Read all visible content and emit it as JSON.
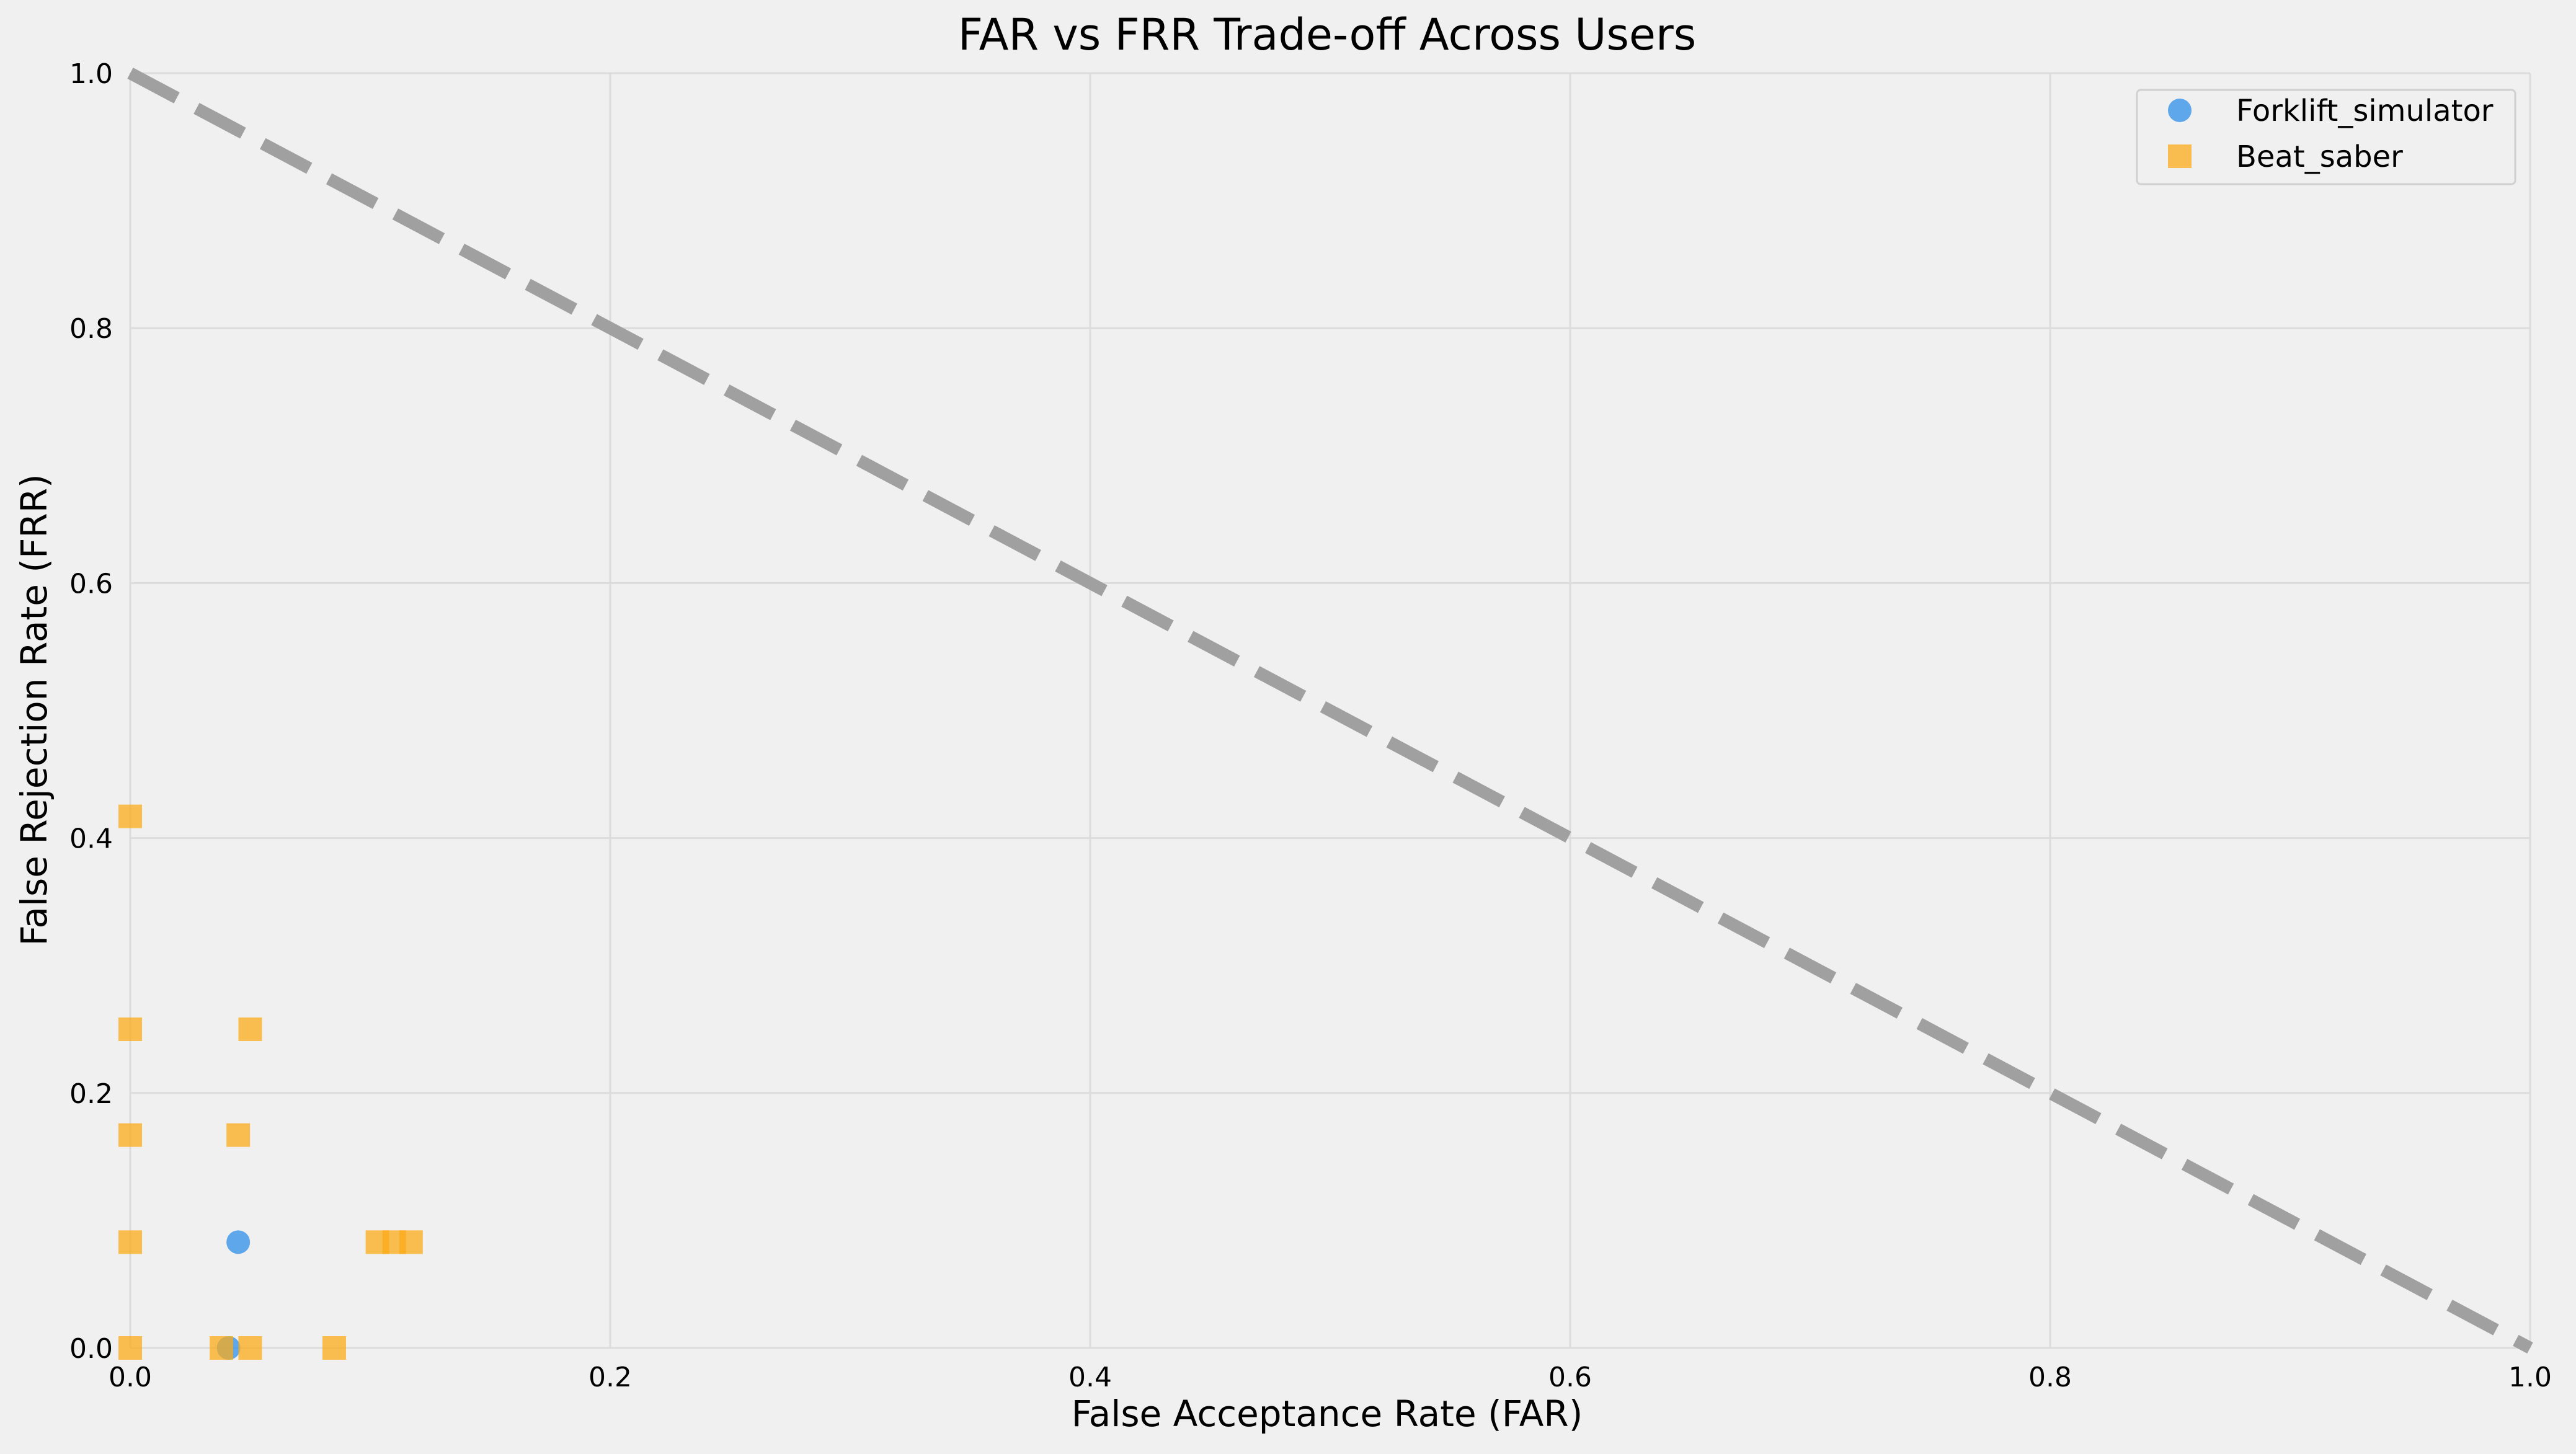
{
  "chart_data": {
    "type": "scatter",
    "title": "FAR vs FRR Trade-off Across Users",
    "xlabel": "False Acceptance Rate (FAR)",
    "ylabel": "False Rejection Rate (FRR)",
    "xlim": [
      0,
      1
    ],
    "ylim": [
      0,
      1
    ],
    "xticks": [
      "0.0",
      "0.2",
      "0.4",
      "0.6",
      "0.8",
      "1.0"
    ],
    "yticks": [
      "0.0",
      "0.2",
      "0.4",
      "0.6",
      "0.8",
      "1.0"
    ],
    "grid": true,
    "legend_position": "top-right",
    "reference_line": {
      "style": "dashed",
      "color": "#a0a0a0",
      "points": [
        [
          0,
          1
        ],
        [
          1,
          0
        ]
      ]
    },
    "series": [
      {
        "name": "Forklift_simulator",
        "marker": "circle",
        "color": "#2e8fea",
        "points": [
          [
            0.045,
            0.083
          ],
          [
            0.041,
            0.0
          ]
        ]
      },
      {
        "name": "Beat_saber",
        "marker": "square",
        "color": "#fbab19",
        "points": [
          [
            0.0,
            0.417
          ],
          [
            0.0,
            0.25
          ],
          [
            0.0,
            0.167
          ],
          [
            0.0,
            0.083
          ],
          [
            0.0,
            0.0
          ],
          [
            0.05,
            0.25
          ],
          [
            0.045,
            0.167
          ],
          [
            0.103,
            0.083
          ],
          [
            0.11,
            0.083
          ],
          [
            0.117,
            0.083
          ],
          [
            0.038,
            0.0
          ],
          [
            0.05,
            0.0
          ],
          [
            0.085,
            0.0
          ]
        ]
      }
    ]
  }
}
